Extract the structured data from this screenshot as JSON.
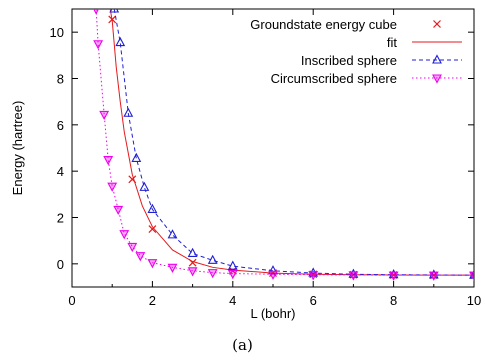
{
  "caption": "(a)",
  "chart_data": {
    "type": "line",
    "title": "",
    "xlabel": "L (bohr)",
    "ylabel": "Energy (hartree)",
    "xlim": [
      0,
      10
    ],
    "ylim": [
      -1,
      11
    ],
    "xticks": [
      0,
      2,
      4,
      6,
      8,
      10
    ],
    "yticks": [
      0,
      2,
      4,
      6,
      8,
      10
    ],
    "grid": false,
    "legend_position": "top-right",
    "series": [
      {
        "name": "Groundstate energy cube",
        "style": "markers",
        "marker": "x",
        "color": "#e41a1c",
        "x": [
          1.0,
          1.5,
          2.0,
          3.0,
          4.0,
          5.0,
          6.0,
          7.0,
          8.0,
          9.0,
          10.0
        ],
        "y": [
          10.55,
          3.65,
          1.5,
          0.05,
          -0.3,
          -0.4,
          -0.45,
          -0.47,
          -0.48,
          -0.49,
          -0.49
        ]
      },
      {
        "name": "fit",
        "style": "line",
        "color": "#e41a1c",
        "x": [
          0.95,
          1.0,
          1.1,
          1.2,
          1.3,
          1.5,
          1.75,
          2.0,
          2.5,
          3.0,
          3.5,
          4.0,
          5.0,
          6.0,
          7.0,
          8.0,
          9.0,
          10.0
        ],
        "y": [
          11.0,
          10.5,
          8.5,
          7.0,
          5.7,
          3.85,
          2.5,
          1.6,
          0.6,
          0.1,
          -0.15,
          -0.27,
          -0.4,
          -0.45,
          -0.47,
          -0.48,
          -0.49,
          -0.49
        ]
      },
      {
        "name": "Inscribed sphere",
        "style": "linespoints",
        "marker": "triangle-up",
        "dash": "dashed",
        "color": "#1f1fd6",
        "x": [
          1.05,
          1.2,
          1.4,
          1.6,
          1.8,
          2.0,
          2.5,
          3.0,
          3.5,
          4.0,
          5.0,
          6.0,
          7.0,
          8.0,
          9.0,
          10.0
        ],
        "y": [
          11.0,
          9.55,
          6.5,
          4.55,
          3.3,
          2.35,
          1.25,
          0.45,
          0.15,
          -0.1,
          -0.3,
          -0.4,
          -0.45,
          -0.47,
          -0.48,
          -0.49
        ]
      },
      {
        "name": "Circumscribed sphere",
        "style": "linespoints",
        "marker": "triangle-down",
        "dash": "dotted",
        "color": "#ee00ee",
        "x": [
          0.6,
          0.65,
          0.8,
          0.9,
          1.0,
          1.15,
          1.3,
          1.5,
          1.7,
          2.0,
          2.5,
          3.0,
          3.5,
          4.0,
          5.0,
          6.0,
          7.0,
          8.0,
          9.0,
          10.0
        ],
        "y": [
          11.0,
          9.5,
          6.45,
          4.5,
          3.35,
          2.35,
          1.3,
          0.75,
          0.35,
          0.05,
          -0.15,
          -0.3,
          -0.38,
          -0.42,
          -0.45,
          -0.47,
          -0.48,
          -0.49,
          -0.49,
          -0.49
        ]
      }
    ]
  }
}
